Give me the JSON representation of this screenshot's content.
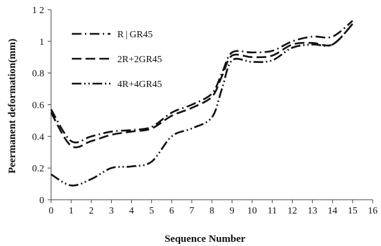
{
  "chart_data": {
    "type": "line",
    "title": "",
    "xlabel": "Sequence Number",
    "ylabel": "Peermanent deformation(mm)",
    "xlim": [
      0,
      16
    ],
    "ylim": [
      0,
      1.2
    ],
    "x_ticks": [
      "0",
      "1",
      "2",
      "3",
      "4",
      "5",
      "6",
      "7",
      "8",
      "9",
      "10",
      "11",
      "12",
      "13",
      "14",
      "15",
      "16"
    ],
    "y_ticks": [
      "0",
      "0.2",
      "0.4",
      "0.6",
      "0.8",
      "1",
      "1 2"
    ],
    "grid": false,
    "legend_position": "top-left",
    "series": [
      {
        "name": "R+GR45",
        "dash": "dash-dot",
        "x": [
          0,
          1,
          2,
          3,
          4,
          5,
          6,
          7,
          8,
          8.5,
          9,
          10,
          11,
          12,
          13,
          14,
          15
        ],
        "y": [
          0.57,
          0.37,
          0.4,
          0.43,
          0.44,
          0.46,
          0.55,
          0.6,
          0.67,
          0.8,
          0.93,
          0.93,
          0.94,
          1.0,
          1.03,
          1.03,
          1.13
        ]
      },
      {
        "name": "2R+2GR45",
        "dash": "long-dash",
        "x": [
          0,
          1,
          2,
          3,
          4,
          5,
          6,
          7,
          8,
          8.5,
          9,
          10,
          11,
          12,
          13,
          14,
          15
        ],
        "y": [
          0.55,
          0.34,
          0.37,
          0.41,
          0.43,
          0.45,
          0.53,
          0.58,
          0.65,
          0.78,
          0.91,
          0.9,
          0.91,
          0.98,
          0.99,
          0.98,
          1.11
        ]
      },
      {
        "name": "4R+4GR45",
        "dash": "dash-dot-dot",
        "x": [
          0,
          1,
          2,
          3,
          4,
          5,
          6,
          7,
          8,
          8.5,
          9,
          10,
          11,
          12,
          13,
          14,
          15
        ],
        "y": [
          0.16,
          0.09,
          0.13,
          0.2,
          0.21,
          0.24,
          0.4,
          0.45,
          0.52,
          0.7,
          0.88,
          0.87,
          0.88,
          0.96,
          0.98,
          0.98,
          1.11
        ]
      }
    ],
    "legend_labels": [
      "R | GR45",
      "2R+2GR45",
      "4R+4GR45"
    ]
  }
}
